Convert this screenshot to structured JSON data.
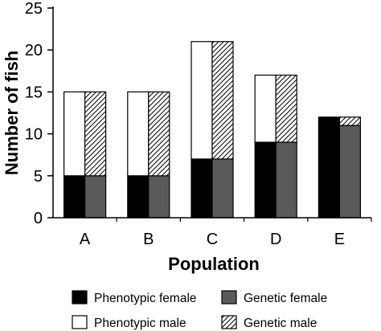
{
  "chart_data": {
    "type": "bar",
    "stacked": true,
    "categories": [
      "A",
      "B",
      "C",
      "D",
      "E"
    ],
    "xlabel": "Population",
    "ylabel": "Number of fish",
    "ylim": [
      0,
      25
    ],
    "yticks": [
      0,
      5,
      10,
      15,
      20,
      25
    ],
    "grid": false,
    "legend_position": "bottom",
    "groups": [
      {
        "name": "phenotypic",
        "stack": [
          {
            "name": "Phenotypic female",
            "values": [
              5,
              5,
              7,
              9,
              12
            ],
            "fill": "#000000",
            "pattern": "solid"
          },
          {
            "name": "Phenotypic male",
            "values": [
              10,
              10,
              14,
              8,
              0
            ],
            "fill": "#ffffff",
            "pattern": "solid"
          }
        ]
      },
      {
        "name": "genetic",
        "stack": [
          {
            "name": "Genetic female",
            "values": [
              5,
              5,
              7,
              9,
              11
            ],
            "fill": "#5a5a5a",
            "pattern": "solid"
          },
          {
            "name": "Genetic male",
            "values": [
              10,
              10,
              14,
              8,
              1
            ],
            "fill": "#ffffff",
            "pattern": "hatch"
          }
        ]
      }
    ],
    "legend": [
      {
        "label": "Phenotypic female",
        "fill": "#000000",
        "pattern": "solid"
      },
      {
        "label": "Genetic female",
        "fill": "#5a5a5a",
        "pattern": "solid"
      },
      {
        "label": "Phenotypic male",
        "fill": "#ffffff",
        "pattern": "solid"
      },
      {
        "label": "Genetic male",
        "fill": "#ffffff",
        "pattern": "hatch"
      }
    ]
  }
}
